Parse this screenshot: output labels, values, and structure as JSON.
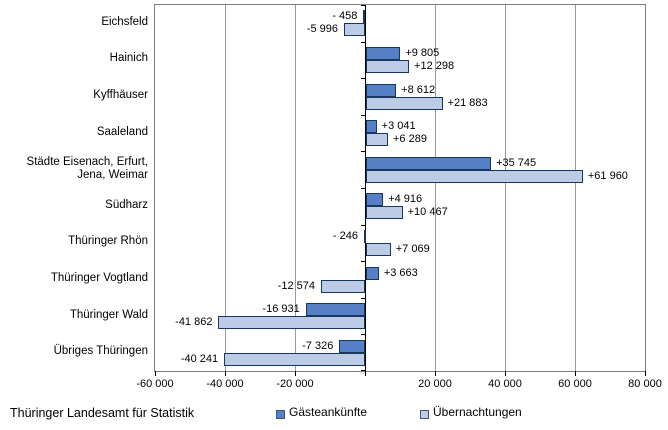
{
  "footer": {
    "source": "Thüringer Landesamt für Statistik"
  },
  "legend": {
    "items": [
      {
        "label": "Gästeankünfte",
        "color": "#5580C6"
      },
      {
        "label": "Übernachtungen",
        "color": "#BDCCE6"
      }
    ]
  },
  "colors": {
    "series_dark": "#5580C6",
    "series_light": "#BDCCE6",
    "bar_border": "#17375E",
    "gridline": "#9a9a9a",
    "plot_border": "#808080",
    "axis": "#000000"
  },
  "chart_data": {
    "type": "bar",
    "orientation": "horizontal",
    "title": "",
    "xlabel": "",
    "ylabel": "",
    "xlim": [
      -60000,
      80000
    ],
    "grid": true,
    "legend_position": "bottom",
    "categories": [
      "Eichsfeld",
      "Hainich",
      "Kyffhäuser",
      "Saaleland",
      "Städte Eisenach, Erfurt, Jena, Weimar",
      "Südharz",
      "Thüringer Rhön",
      "Thüringer Vogtland",
      "Thüringer Wald",
      "Übriges Thüringen"
    ],
    "series": [
      {
        "name": "Gästeankünfte",
        "color": "#5580C6",
        "values": [
          -458,
          9805,
          8612,
          3041,
          35745,
          4916,
          -246,
          3663,
          -16931,
          -7326
        ],
        "labels": [
          "- 458",
          "+9 805",
          "+8 612",
          "+3 041",
          "+35 745",
          "+4 916",
          "- 246",
          "+3 663",
          "-16 931",
          "-7 326"
        ]
      },
      {
        "name": "Übernachtungen",
        "color": "#BDCCE6",
        "values": [
          -5996,
          12298,
          21883,
          6289,
          61960,
          10467,
          7069,
          -12574,
          -41862,
          -40241
        ],
        "labels": [
          "-5 996",
          "+12 298",
          "+21 883",
          "+6 289",
          "+61 960",
          "+10 467",
          "+7 069",
          "-12 574",
          "-41 862",
          "-40 241"
        ]
      }
    ],
    "xticks": [
      -60000,
      -40000,
      -20000,
      0,
      20000,
      40000,
      60000,
      80000
    ],
    "xtick_labels": [
      "-60 000",
      "-40 000",
      "-20 000",
      "",
      "20 000",
      "40 000",
      "60 000",
      "80 000"
    ]
  }
}
